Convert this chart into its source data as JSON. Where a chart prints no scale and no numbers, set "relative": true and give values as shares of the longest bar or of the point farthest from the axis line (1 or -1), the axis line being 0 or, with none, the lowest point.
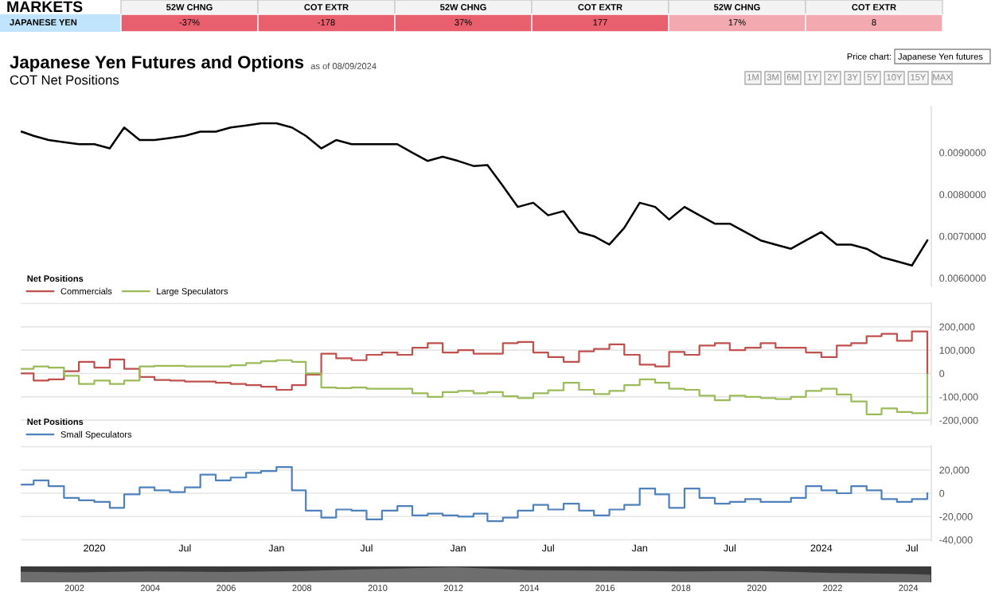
{
  "chart_data": [
    {
      "type": "other",
      "annotations": [
        "MARKETS",
        "52W CHNG",
        "COT EXTR",
        "52W CHNG",
        "COT EXTR",
        "52W CHNG",
        "COT EXTR",
        "JAPANESE YEN",
        "-37%",
        "-178",
        "37%",
        "177",
        "17%",
        "8"
      ],
      "colors": [
        "#e8606e",
        "#e8606e",
        "#e8606e",
        "#e8606e",
        "#f2aab0",
        "#f2aab0"
      ]
    },
    {
      "type": "line",
      "title": "Japanese Yen Futures and Options",
      "subtitle": "COT Net Positions",
      "annotations": [
        "as of 08/09/2024",
        "Price chart:",
        "Japanese Yen futures",
        "1M",
        "3M",
        "6M",
        "1Y",
        "2Y",
        "3Y",
        "5Y",
        "10Y",
        "15Y",
        "MAX"
      ],
      "x": [
        "2019-08-08",
        "2019-09-01",
        "2019-10-01",
        "2019-11-01",
        "2019-12-01",
        "2020-01-01",
        "2020-02-01",
        "2020-03-01",
        "2020-04-01",
        "2020-05-01",
        "2020-06-01",
        "2020-07-01",
        "2020-08-01",
        "2020-09-01",
        "2020-10-01",
        "2020-11-01",
        "2020-12-01",
        "2021-01-01",
        "2021-02-01",
        "2021-03-01",
        "2021-04-01",
        "2021-05-01",
        "2021-06-01",
        "2021-07-01",
        "2021-08-01",
        "2021-09-01",
        "2021-10-01",
        "2021-11-01",
        "2021-12-01",
        "2022-01-01",
        "2022-02-01",
        "2022-03-01",
        "2022-04-01",
        "2022-05-01",
        "2022-06-01",
        "2022-07-01",
        "2022-08-01",
        "2022-09-01",
        "2022-10-01",
        "2022-11-01",
        "2022-12-01",
        "2023-01-01",
        "2023-02-01",
        "2023-03-01",
        "2023-04-01",
        "2023-05-01",
        "2023-06-01",
        "2023-07-01",
        "2023-08-01",
        "2023-09-01",
        "2023-10-01",
        "2023-11-01",
        "2023-12-01",
        "2024-01-01",
        "2024-02-01",
        "2024-03-01",
        "2024-04-01",
        "2024-05-01",
        "2024-06-01",
        "2024-07-01",
        "2024-08-01"
      ],
      "series": [
        {
          "color": "#000000",
          "values": [
            0.0095,
            0.0094,
            0.0093,
            0.00925,
            0.0092,
            0.0092,
            0.0091,
            0.0096,
            0.0093,
            0.0093,
            0.00935,
            0.0094,
            0.0095,
            0.0095,
            0.0096,
            0.00965,
            0.0097,
            0.0097,
            0.0096,
            0.0094,
            0.0091,
            0.0093,
            0.0092,
            0.0092,
            0.0092,
            0.0092,
            0.009,
            0.0088,
            0.0089,
            0.0088,
            0.00868,
            0.0087,
            0.0082,
            0.0077,
            0.0078,
            0.0075,
            0.0076,
            0.0071,
            0.007,
            0.0068,
            0.0072,
            0.0078,
            0.0077,
            0.0074,
            0.0077,
            0.0075,
            0.0073,
            0.0073,
            0.0071,
            0.0069,
            0.0068,
            0.0067,
            0.0069,
            0.0071,
            0.0068,
            0.0068,
            0.0067,
            0.0065,
            0.0064,
            0.0063,
            0.0069
          ]
        }
      ],
      "xlim": [
        "2019-08-06",
        "2024-08-09"
      ],
      "ylim": [
        0.0058,
        0.0101
      ],
      "yticks": [
        {
          "value": 0.006,
          "label": "0.0060000"
        },
        {
          "value": 0.007,
          "label": "0.0070000"
        },
        {
          "value": 0.008,
          "label": "0.0080000"
        },
        {
          "value": 0.009,
          "label": "0.0090000"
        }
      ],
      "tick_labels": "y",
      "grid": false,
      "legend": false
    },
    {
      "type": "step",
      "legend_title": "Net Positions",
      "legend": "top left",
      "grid": "y",
      "tick_labels": "y",
      "x": [
        "2019-08-08",
        "2019-09-01",
        "2019-10-01",
        "2019-11-01",
        "2019-12-01",
        "2020-01-01",
        "2020-02-01",
        "2020-03-01",
        "2020-04-01",
        "2020-05-01",
        "2020-06-01",
        "2020-07-01",
        "2020-08-01",
        "2020-09-01",
        "2020-10-01",
        "2020-11-01",
        "2020-12-01",
        "2021-01-01",
        "2021-02-01",
        "2021-03-01",
        "2021-04-01",
        "2021-05-01",
        "2021-06-01",
        "2021-07-01",
        "2021-08-01",
        "2021-09-01",
        "2021-10-01",
        "2021-11-01",
        "2021-12-01",
        "2022-01-01",
        "2022-02-01",
        "2022-03-01",
        "2022-04-01",
        "2022-05-01",
        "2022-06-01",
        "2022-07-01",
        "2022-08-01",
        "2022-09-01",
        "2022-10-01",
        "2022-11-01",
        "2022-12-01",
        "2023-01-01",
        "2023-02-01",
        "2023-03-01",
        "2023-04-01",
        "2023-05-01",
        "2023-06-01",
        "2023-07-01",
        "2023-08-01",
        "2023-09-01",
        "2023-10-01",
        "2023-11-01",
        "2023-12-01",
        "2024-01-01",
        "2024-02-01",
        "2024-03-01",
        "2024-04-01",
        "2024-05-01",
        "2024-06-01",
        "2024-07-01",
        "2024-08-01"
      ],
      "series": [
        {
          "name": "Commercials",
          "color": "#c0504d",
          "values": [
            0,
            -30000,
            -25000,
            10000,
            50000,
            25000,
            60000,
            20000,
            -15000,
            -28000,
            -30000,
            -35000,
            -35000,
            -40000,
            -45000,
            -50000,
            -57000,
            -70000,
            -50000,
            -5000,
            85000,
            65000,
            57000,
            80000,
            90000,
            80000,
            110000,
            130000,
            90000,
            100000,
            85000,
            85000,
            130000,
            135000,
            90000,
            70000,
            50000,
            95000,
            105000,
            125000,
            80000,
            38000,
            30000,
            92000,
            80000,
            120000,
            130000,
            100000,
            110000,
            130000,
            110000,
            110000,
            90000,
            70000,
            120000,
            130000,
            160000,
            170000,
            140000,
            180000,
            0
          ]
        },
        {
          "name": "Large Speculators",
          "color": "#9bbb59",
          "values": [
            20000,
            30000,
            25000,
            -10000,
            -45000,
            -30000,
            -45000,
            -30000,
            30000,
            33000,
            33000,
            30000,
            30000,
            30000,
            35000,
            45000,
            52000,
            57000,
            50000,
            0,
            -60000,
            -63000,
            -60000,
            -65000,
            -65000,
            -65000,
            -85000,
            -100000,
            -80000,
            -75000,
            -85000,
            -80000,
            -98000,
            -105000,
            -85000,
            -72000,
            -40000,
            -70000,
            -88000,
            -75000,
            -50000,
            -25000,
            -40000,
            -65000,
            -70000,
            -95000,
            -115000,
            -95000,
            -100000,
            -105000,
            -110000,
            -100000,
            -75000,
            -65000,
            -90000,
            -120000,
            -175000,
            -150000,
            -165000,
            -170000,
            -5000
          ]
        }
      ],
      "xlim": [
        "2019-08-06",
        "2024-08-09"
      ],
      "ylim": [
        -220000,
        305000
      ],
      "yticks": [
        {
          "value": -200000,
          "label": "-200,000"
        },
        {
          "value": -100000,
          "label": "-100,000"
        },
        {
          "value": 0,
          "label": "0"
        },
        {
          "value": 100000,
          "label": "100,000"
        },
        {
          "value": 200000,
          "label": "200,000"
        },
        {
          "value": 300000,
          "label": null
        }
      ]
    },
    {
      "type": "step",
      "legend_title": "Net Positions",
      "legend": "top left",
      "grid": "y",
      "x": [
        "2019-08-08",
        "2019-09-01",
        "2019-10-01",
        "2019-11-01",
        "2019-12-01",
        "2020-01-01",
        "2020-02-01",
        "2020-03-01",
        "2020-04-01",
        "2020-05-01",
        "2020-06-01",
        "2020-07-01",
        "2020-08-01",
        "2020-09-01",
        "2020-10-01",
        "2020-11-01",
        "2020-12-01",
        "2021-01-01",
        "2021-02-01",
        "2021-03-01",
        "2021-04-01",
        "2021-05-01",
        "2021-06-01",
        "2021-07-01",
        "2021-08-01",
        "2021-09-01",
        "2021-10-01",
        "2021-11-01",
        "2021-12-01",
        "2022-01-01",
        "2022-02-01",
        "2022-03-01",
        "2022-04-01",
        "2022-05-01",
        "2022-06-01",
        "2022-07-01",
        "2022-08-01",
        "2022-09-01",
        "2022-10-01",
        "2022-11-01",
        "2022-12-01",
        "2023-01-01",
        "2023-02-01",
        "2023-03-01",
        "2023-04-01",
        "2023-05-01",
        "2023-06-01",
        "2023-07-01",
        "2023-08-01",
        "2023-09-01",
        "2023-10-01",
        "2023-11-01",
        "2023-12-01",
        "2024-01-01",
        "2024-02-01",
        "2024-03-01",
        "2024-04-01",
        "2024-05-01",
        "2024-06-01",
        "2024-07-01",
        "2024-08-01"
      ],
      "series": [
        {
          "name": "Small Speculators",
          "color": "#4f81bd",
          "values": [
            7500,
            11000,
            6000,
            -4000,
            -6000,
            -7500,
            -12500,
            -1000,
            5000,
            2500,
            1000,
            5000,
            16000,
            11000,
            13500,
            17500,
            19000,
            22500,
            2500,
            -15000,
            -21000,
            -14000,
            -15000,
            -22500,
            -15000,
            -11000,
            -19000,
            -17500,
            -19000,
            -20000,
            -17500,
            -24000,
            -21000,
            -15000,
            -10000,
            -14000,
            -9000,
            -15000,
            -19000,
            -14000,
            -10000,
            4000,
            -1000,
            -12500,
            4000,
            -4000,
            -9000,
            -7500,
            -5000,
            -7500,
            -7500,
            -4000,
            6000,
            2500,
            0,
            6000,
            2500,
            -5000,
            -7500,
            -5000,
            0
          ]
        }
      ],
      "xlim": [
        "2019-08-06",
        "2024-08-09"
      ],
      "ylim": [
        -41000,
        41000
      ],
      "yticks": [
        {
          "value": -40000,
          "label": "-40,000"
        },
        {
          "value": -20000,
          "label": "-20,000"
        },
        {
          "value": 0,
          "label": "0"
        },
        {
          "value": 20000,
          "label": "20,000"
        },
        {
          "value": 40000,
          "label": null
        }
      ],
      "xticks": [
        {
          "value": "2020-01-01",
          "label": "2020"
        },
        {
          "value": "2020-07-01",
          "label": "Jul"
        },
        {
          "value": "2021-01-01",
          "label": "Jan"
        },
        {
          "value": "2021-07-01",
          "label": "Jul"
        },
        {
          "value": "2022-01-01",
          "label": "Jan"
        },
        {
          "value": "2022-07-01",
          "label": "Jul"
        },
        {
          "value": "2023-01-01",
          "label": "Jan"
        },
        {
          "value": "2023-07-01",
          "label": "Jul"
        },
        {
          "value": "2024-01-01",
          "label": "2024"
        },
        {
          "value": "2024-07-01",
          "label": "Jul"
        }
      ]
    },
    {
      "type": "area",
      "relative": true,
      "tick_labels": "x",
      "x": [
        "2000-08-01",
        "2002-01-01",
        "2004-01-01",
        "2006-01-01",
        "2008-01-01",
        "2010-01-01",
        "2012-01-01",
        "2014-01-01",
        "2016-01-01",
        "2018-01-01",
        "2020-01-01",
        "2022-01-01",
        "2024-01-01",
        "2024-08-01"
      ],
      "series": [
        {
          "color": "#6e6e6e",
          "values": [
            0.7,
            0.65,
            0.72,
            0.68,
            0.75,
            0.88,
            1.0,
            0.8,
            0.78,
            0.72,
            0.75,
            0.62,
            0.55,
            0.5
          ]
        }
      ],
      "xlim": [
        "2000-08-01",
        "2024-08-09"
      ],
      "xticks": [
        {
          "value": "2002-01-01",
          "label": "2002"
        },
        {
          "value": "2004-01-01",
          "label": "2004"
        },
        {
          "value": "2006-01-01",
          "label": "2006"
        },
        {
          "value": "2008-01-01",
          "label": "2008"
        },
        {
          "value": "2010-01-01",
          "label": "2010"
        },
        {
          "value": "2012-01-01",
          "label": "2012"
        },
        {
          "value": "2014-01-01",
          "label": "2014"
        },
        {
          "value": "2016-01-01",
          "label": "2016"
        },
        {
          "value": "2018-01-01",
          "label": "2018"
        },
        {
          "value": "2020-01-01",
          "label": "2020"
        },
        {
          "value": "2022-01-01",
          "label": "2022"
        },
        {
          "value": "2024-01-01",
          "label": "2024"
        }
      ]
    }
  ]
}
